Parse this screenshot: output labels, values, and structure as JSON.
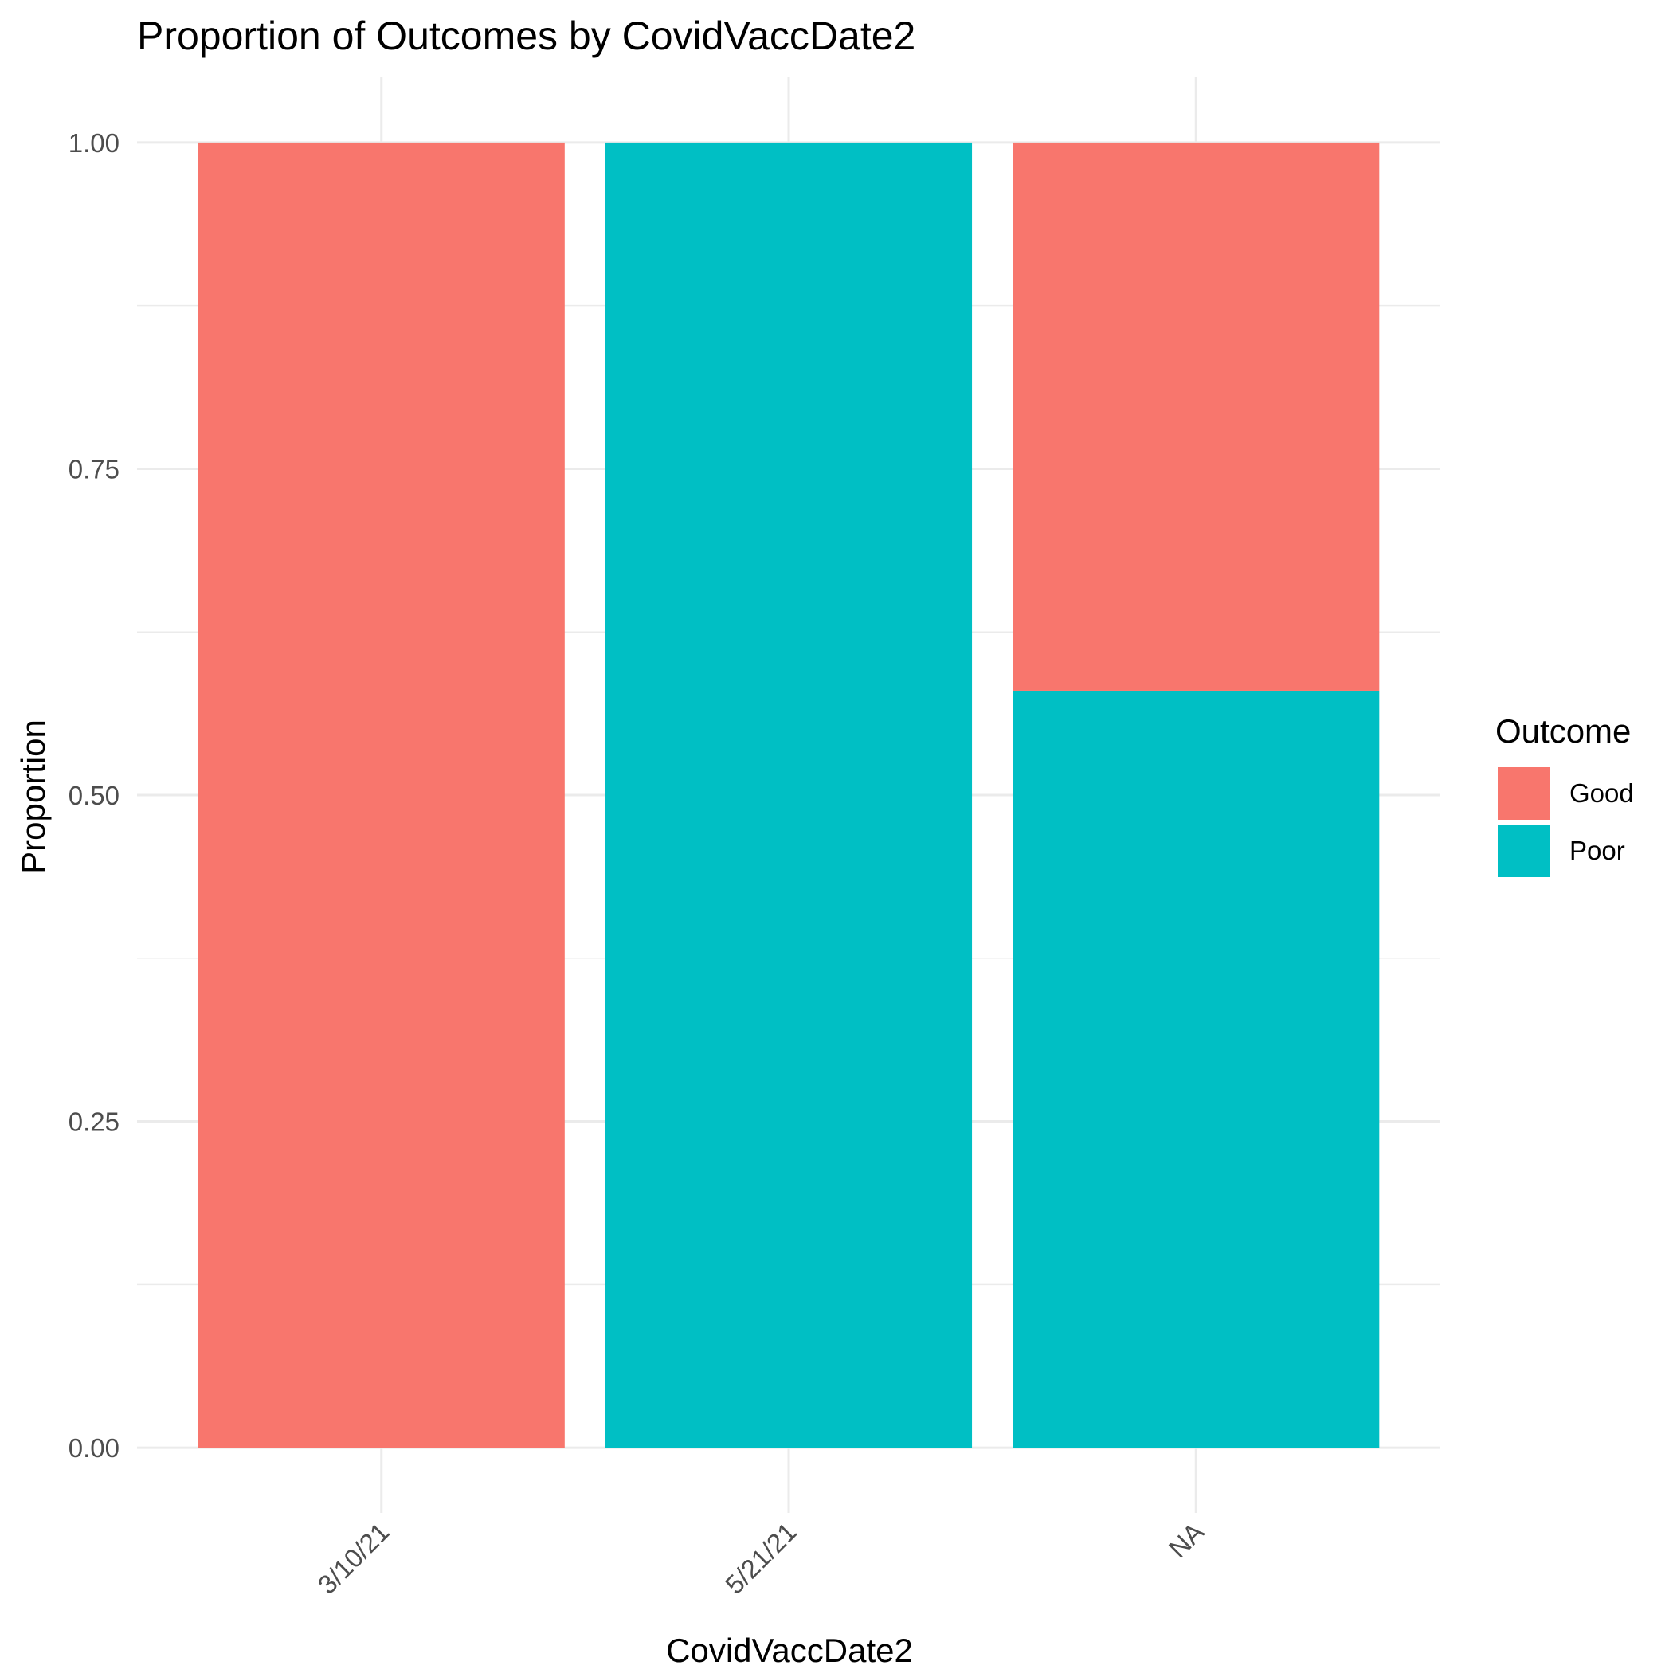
{
  "chart_data": {
    "type": "bar",
    "stacked": true,
    "title": "Proportion of Outcomes by CovidVaccDate2",
    "xlabel": "CovidVaccDate2",
    "ylabel": "Proportion",
    "categories": [
      "3/10/21",
      "5/21/21",
      "NA"
    ],
    "series": [
      {
        "name": "Good",
        "color": "#F8766D",
        "values": [
          1.0,
          0.0,
          0.42
        ]
      },
      {
        "name": "Poor",
        "color": "#00BFC4",
        "values": [
          0.0,
          1.0,
          0.58
        ]
      }
    ],
    "stack_order_bottom_to_top": [
      "Poor",
      "Good"
    ],
    "ylim": [
      -0.05,
      1.05
    ],
    "yticks": [
      0.0,
      0.25,
      0.5,
      0.75,
      1.0
    ],
    "ytick_labels": [
      "0.00",
      "0.25",
      "0.50",
      "0.75",
      "1.00"
    ],
    "grid": true,
    "legend": {
      "title": "Outcome",
      "position": "right",
      "entries": [
        "Good",
        "Poor"
      ]
    },
    "x_tick_rotation_deg": 45
  }
}
